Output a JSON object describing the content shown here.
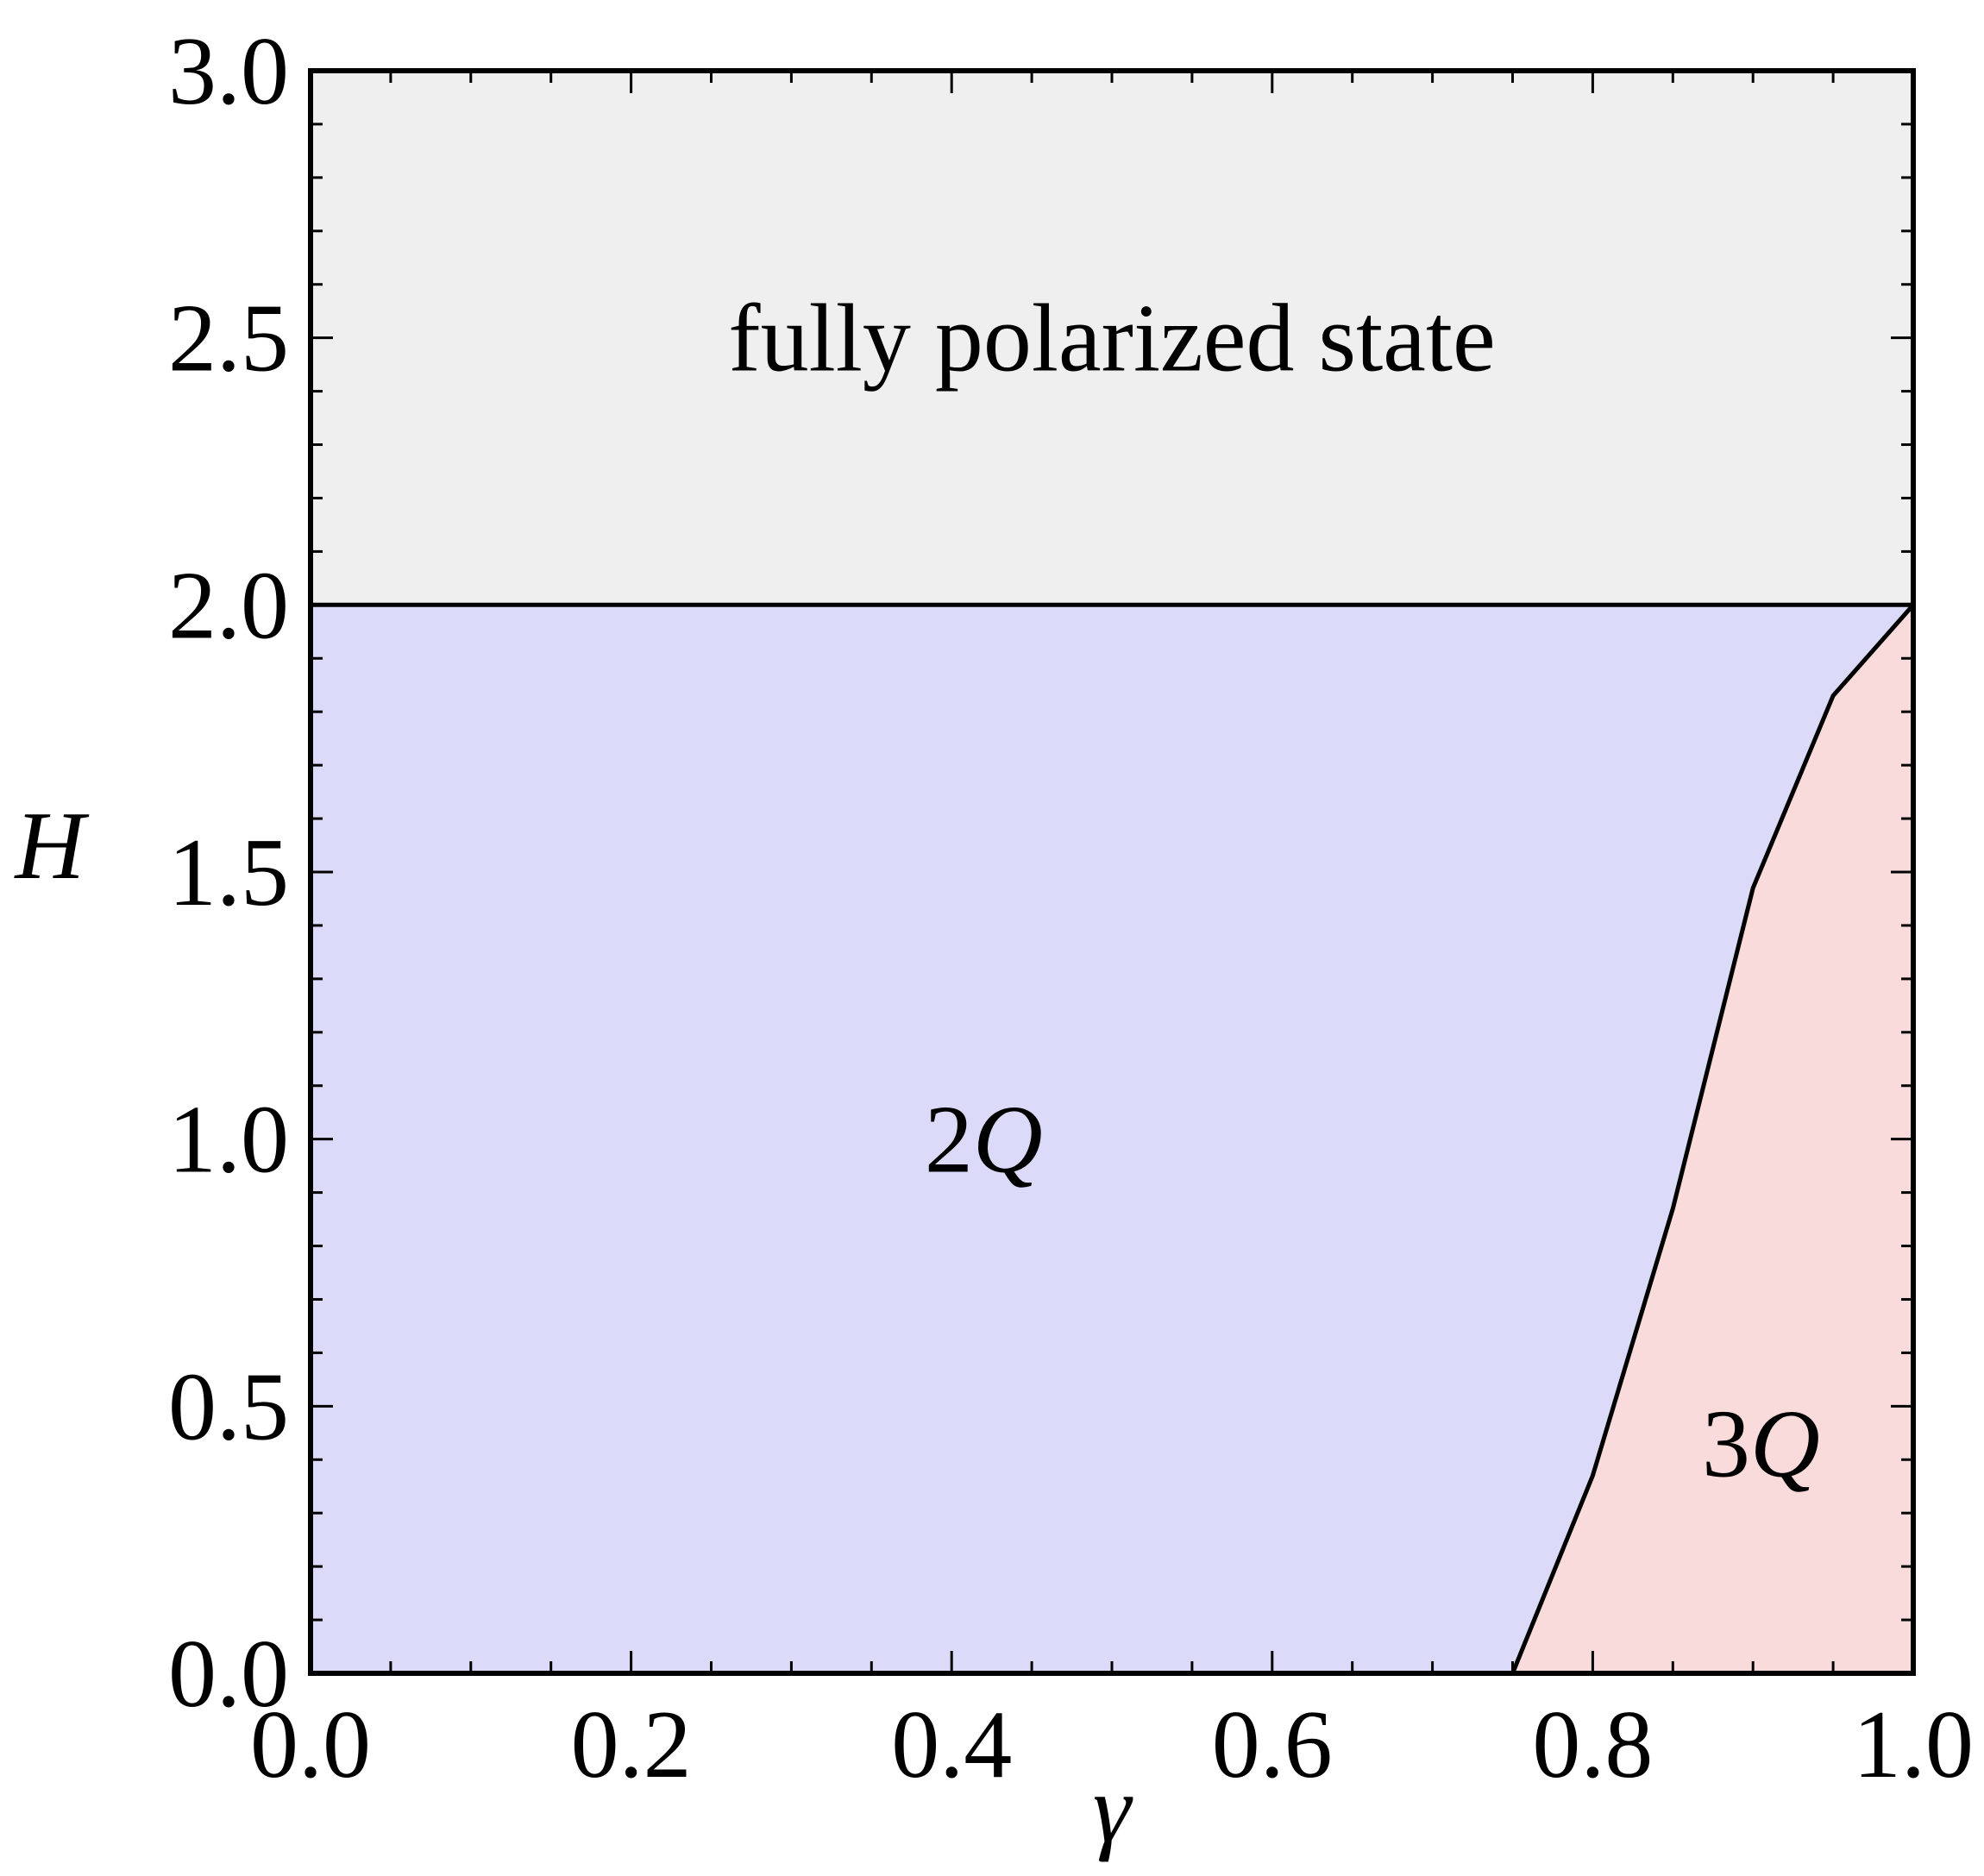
{
  "chart_data": {
    "type": "area",
    "xlabel": "γ",
    "ylabel": "H",
    "xlim": [
      0.0,
      1.0
    ],
    "ylim": [
      0.0,
      3.0
    ],
    "x_ticks": [
      "0.0",
      "0.2",
      "0.4",
      "0.6",
      "0.8",
      "1.0"
    ],
    "y_ticks": [
      "0.0",
      "0.5",
      "1.0",
      "1.5",
      "2.0",
      "2.5",
      "3.0"
    ],
    "x_minor_step": 0.05,
    "y_minor_step": 0.1,
    "grid": false,
    "regions": [
      {
        "label": "fully polarized state",
        "color": "#efefef",
        "boundary": [
          [
            0.0,
            2.0
          ],
          [
            1.0,
            2.0
          ],
          [
            1.0,
            3.0
          ],
          [
            0.0,
            3.0
          ]
        ]
      },
      {
        "label_number": "2",
        "label_italic": "Q",
        "color": "#dbdbf9",
        "boundary": [
          [
            0.0,
            0.0
          ],
          [
            0.75,
            0.0
          ],
          [
            0.8,
            0.37
          ],
          [
            0.85,
            0.87
          ],
          [
            0.9,
            1.47
          ],
          [
            0.95,
            1.83
          ],
          [
            1.0,
            2.0
          ],
          [
            0.0,
            2.0
          ]
        ]
      },
      {
        "label_number": "3",
        "label_italic": "Q",
        "color": "#f9dbdb",
        "boundary": [
          [
            0.75,
            0.0
          ],
          [
            0.8,
            0.37
          ],
          [
            0.85,
            0.87
          ],
          [
            0.9,
            1.47
          ],
          [
            0.95,
            1.83
          ],
          [
            1.0,
            2.0
          ],
          [
            1.0,
            0.0
          ]
        ]
      }
    ],
    "phase_boundaries": [
      {
        "points": [
          [
            0.0,
            2.0
          ],
          [
            1.0,
            2.0
          ]
        ]
      },
      {
        "points": [
          [
            0.75,
            0.0
          ],
          [
            0.8,
            0.37
          ],
          [
            0.85,
            0.87
          ],
          [
            0.9,
            1.47
          ],
          [
            0.95,
            1.83
          ],
          [
            1.0,
            2.0
          ]
        ]
      }
    ],
    "annotations": [
      {
        "text": "fully polarized state",
        "x": 0.5,
        "y": 2.5
      },
      {
        "number": "2",
        "italic": "Q",
        "x": 0.42,
        "y": 1.0
      },
      {
        "number": "3",
        "italic": "Q",
        "x": 0.905,
        "y": 0.43
      }
    ]
  }
}
